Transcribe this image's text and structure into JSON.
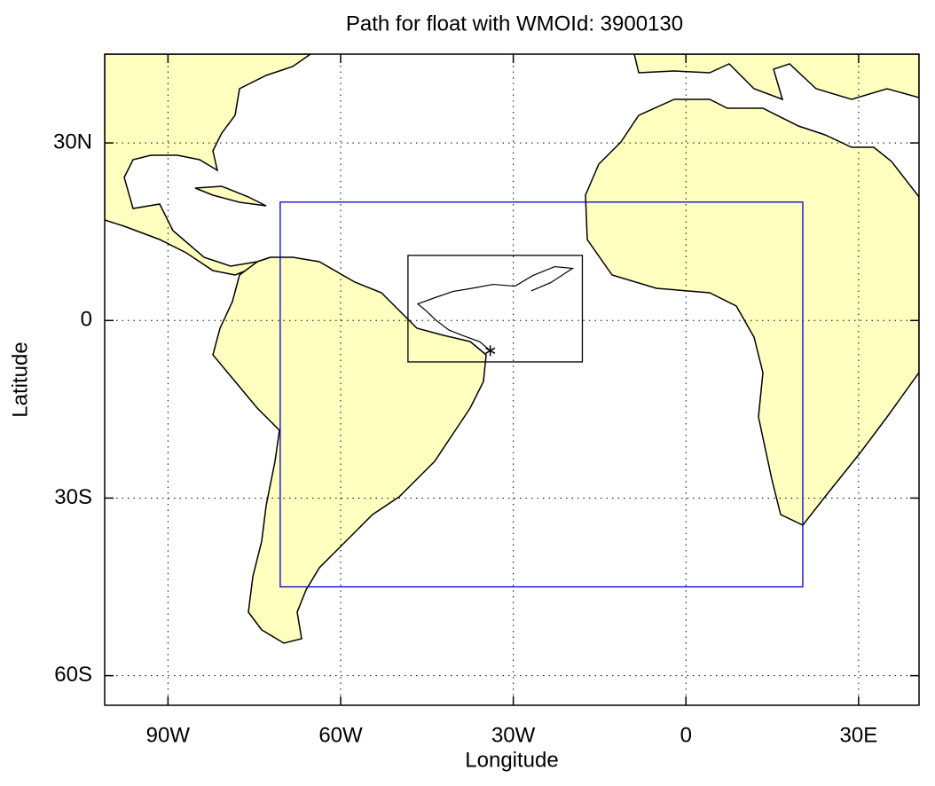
{
  "chart_data": {
    "type": "map",
    "title": "Path for float with WMOId: 3900130",
    "xlabel": "Longitude",
    "ylabel": "Latitude",
    "xlim": [
      -101,
      40.5
    ],
    "ylim": [
      -65,
      45
    ],
    "xticks": [
      {
        "value": -90,
        "label": "90W"
      },
      {
        "value": -60,
        "label": "60W"
      },
      {
        "value": -30,
        "label": "30W"
      },
      0,
      {
        "value": 30,
        "label": "30E"
      }
    ],
    "yticks": [
      {
        "value": -60,
        "label": "60S"
      },
      {
        "value": -30,
        "label": "30S"
      },
      0,
      {
        "value": 30,
        "label": "30N"
      }
    ],
    "grid": true,
    "regions": [
      {
        "color": "#0000cc",
        "lon": [
          -70.5,
          20.3
        ],
        "lat": [
          -45,
          20
        ]
      },
      {
        "color": "#000000",
        "lon": [
          -48.3,
          -18
        ],
        "lat": [
          -7,
          11
        ]
      }
    ],
    "track": {
      "color": "#000000",
      "lon": [
        -34.0,
        -35.8,
        -38.9,
        -41.2,
        -43.5,
        -45.1,
        -46.6,
        -43.5,
        -40.5,
        -37.4,
        -33.5,
        -29.7,
        -26.6,
        -22.8,
        -19.7,
        -23.5,
        -26.9
      ],
      "lat": [
        -5.1,
        -3.6,
        -2.5,
        -1.6,
        0.1,
        1.6,
        2.8,
        3.9,
        4.9,
        5.4,
        6.1,
        5.8,
        7.6,
        9.1,
        8.8,
        6.4,
        5.0
      ]
    }
  }
}
